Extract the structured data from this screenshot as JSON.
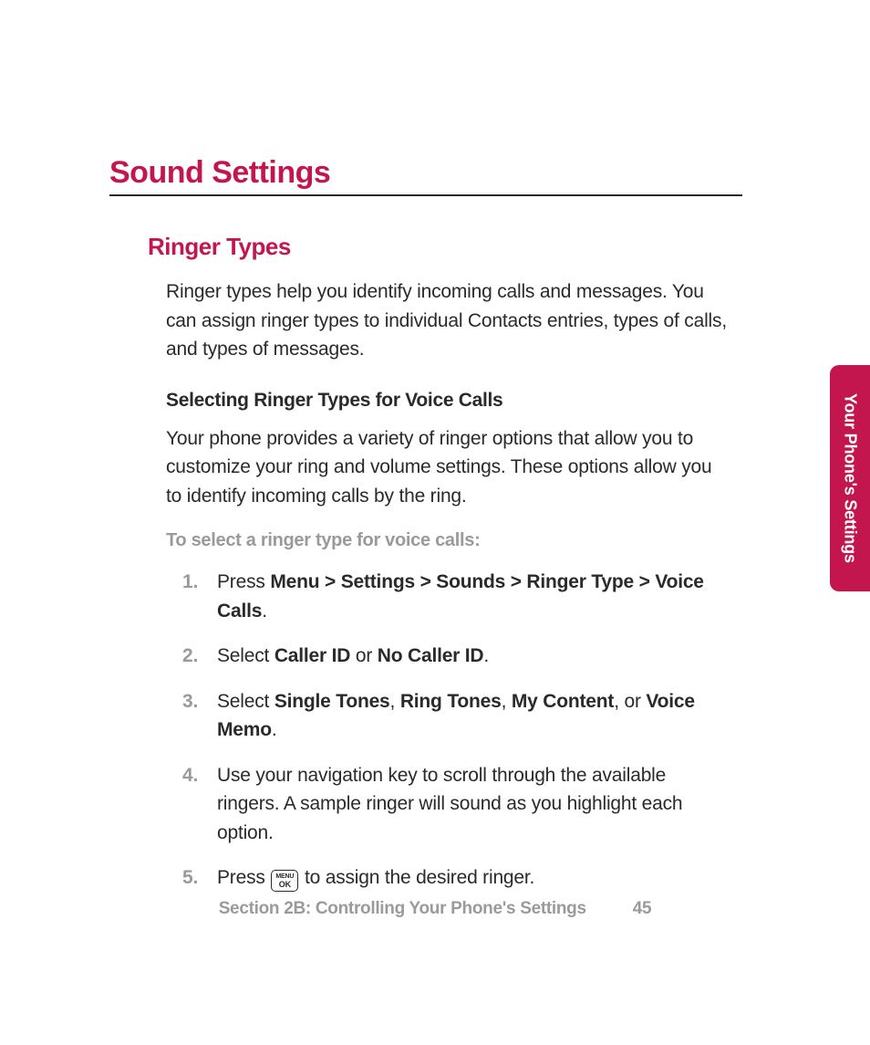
{
  "colors": {
    "accent": "#c4164e",
    "text": "#2a2a2a",
    "muted": "#9a9a9a",
    "rule": "#2a2a2a",
    "tab_bg": "#c4164e",
    "tab_text": "#ffffff",
    "page_bg": "#ffffff"
  },
  "typography": {
    "h1_size_pt": 26,
    "h2_size_pt": 20,
    "h3_size_pt": 16,
    "body_size_pt": 16,
    "lead_size_pt": 15,
    "tab_size_pt": 14,
    "footer_size_pt": 14
  },
  "heading": "Sound Settings",
  "subheading": "Ringer Types",
  "intro": "Ringer types help you identify incoming calls and messages. You can assign ringer types to individual Contacts entries, types of calls, and types of messages.",
  "section_title": "Selecting Ringer Types for Voice Calls",
  "section_body": "Your phone provides a variety of ringer options that allow you to customize your ring and volume settings. These options allow you to identify incoming calls by the ring.",
  "lead_in": "To select a ringer type for voice calls:",
  "steps": [
    {
      "num": "1.",
      "pre": "Press ",
      "bold": "Menu > Settings > Sounds > Ringer Type > Voice Calls",
      "post": "."
    },
    {
      "num": "2.",
      "pre": "Select ",
      "bold": "Caller ID",
      "mid": " or ",
      "bold2": "No Caller ID",
      "post": "."
    },
    {
      "num": "3.",
      "pre": "Select ",
      "bold": "Single Tones",
      "sep1": ", ",
      "bold2": "Ring Tones",
      "sep2": ", ",
      "bold3": "My Content",
      "mid": ", or ",
      "bold4": "Voice Memo",
      "post": "."
    },
    {
      "num": "4.",
      "text": "Use your navigation key to scroll through the available ringers. A sample ringer will sound as you highlight each option."
    },
    {
      "num": "5.",
      "pre": "Press ",
      "key_top": "MENU",
      "key_bottom": "OK",
      "post": " to assign the desired ringer."
    }
  ],
  "side_tab": "Your Phone's Settings",
  "footer_section": "Section 2B: Controlling Your Phone's Settings",
  "page_number": "45"
}
